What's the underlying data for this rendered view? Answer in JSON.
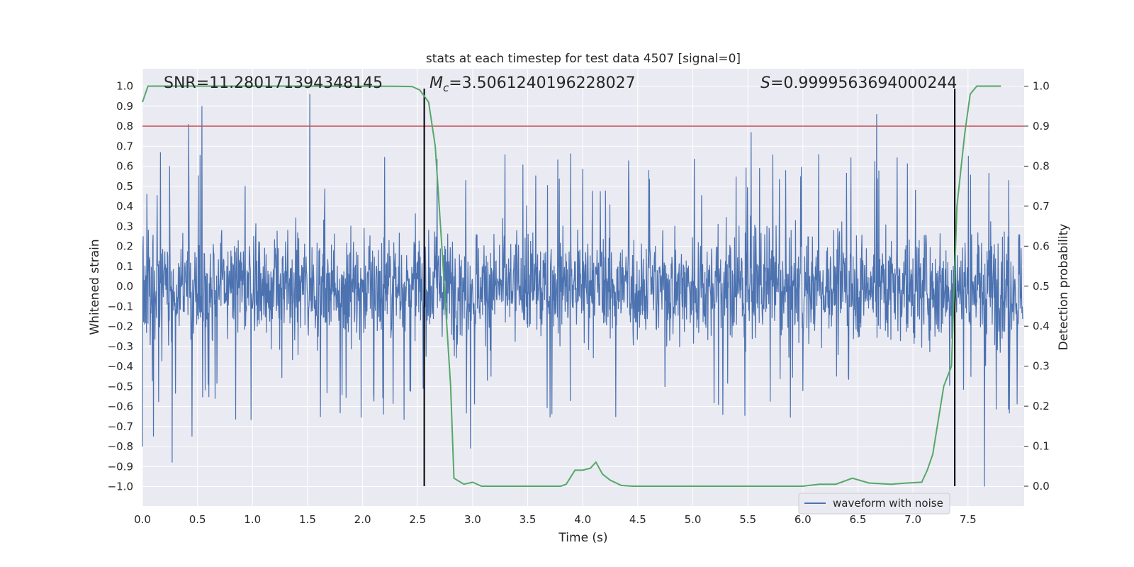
{
  "chart_data": {
    "type": "line",
    "title": "stats at each timestep for test data 4507 [signal=0]",
    "xlabel": "Time (s)",
    "ylabel": "Whitened strain",
    "ylabel_right": "Detection probability",
    "xlim": [
      0.0,
      8.0
    ],
    "ylim": [
      -1.1,
      1.1
    ],
    "ylim_right": [
      -0.05,
      1.05
    ],
    "x_ticks": [
      "0.0",
      "0.5",
      "1.0",
      "1.5",
      "2.0",
      "2.5",
      "3.0",
      "3.5",
      "4.0",
      "4.5",
      "5.0",
      "5.5",
      "6.0",
      "6.5",
      "7.0",
      "7.5"
    ],
    "y_ticks": [
      "1.0",
      "0.9",
      "0.8",
      "0.7",
      "0.6",
      "0.5",
      "0.4",
      "0.3",
      "0.2",
      "0.1",
      "0.0",
      "−0.1",
      "−0.2",
      "−0.3",
      "−0.4",
      "−0.5",
      "−0.6",
      "−0.7",
      "−0.8",
      "−0.9",
      "−1.0"
    ],
    "y_right_ticks": [
      "1.0",
      "0.9",
      "0.8",
      "0.7",
      "0.6",
      "0.5",
      "0.4",
      "0.3",
      "0.2",
      "0.1",
      "0.0"
    ],
    "annotations": {
      "snr_text": "SNR=11.280171394348145",
      "mc_symbol": "M",
      "mc_sub": "c",
      "mc_value": "=3.5061240196228027",
      "s_symbol": "S",
      "s_value": "=0.9999563694000244"
    },
    "vertical_lines_x": [
      2.56,
      7.38
    ],
    "threshold_right": 0.9,
    "series": [
      {
        "name": "waveform with noise",
        "axis": "left",
        "envelope": "noise with typical amplitude ±0.4 and spikes up to ±1.0",
        "spikes": [
          {
            "x": 0.42,
            "y": 0.81
          },
          {
            "x": 0.54,
            "y": 0.9
          },
          {
            "x": 1.52,
            "y": 0.96
          },
          {
            "x": 5.53,
            "y": 0.77
          },
          {
            "x": 6.67,
            "y": 0.86
          },
          {
            "x": 0.27,
            "y": -0.88
          },
          {
            "x": 2.98,
            "y": -0.81
          },
          {
            "x": 7.65,
            "y": -1.0
          },
          {
            "x": 0.45,
            "y": -0.75
          },
          {
            "x": 0.1,
            "y": -0.75
          },
          {
            "x": 0.0,
            "y": -0.8
          }
        ]
      },
      {
        "name": "detection probability",
        "axis": "right",
        "x": [
          0.0,
          0.05,
          0.5,
          1.0,
          1.5,
          2.0,
          2.3,
          2.45,
          2.52,
          2.6,
          2.66,
          2.72,
          2.8,
          2.83,
          2.92,
          3.0,
          3.08,
          3.15,
          3.5,
          3.8,
          3.85,
          3.93,
          4.0,
          4.07,
          4.12,
          4.18,
          4.25,
          4.35,
          4.45,
          5.0,
          5.5,
          6.0,
          6.15,
          6.3,
          6.45,
          6.6,
          6.8,
          6.95,
          7.08,
          7.13,
          7.18,
          7.28,
          7.35,
          7.4,
          7.47,
          7.52,
          7.58,
          7.65,
          7.8
        ],
        "y": [
          0.96,
          1.0,
          1.0,
          1.0,
          1.0,
          0.9998,
          0.9996,
          0.999,
          0.99,
          0.96,
          0.85,
          0.6,
          0.25,
          0.02,
          0.005,
          0.01,
          0.0,
          0.0,
          0.0,
          0.0,
          0.005,
          0.04,
          0.04,
          0.045,
          0.06,
          0.03,
          0.015,
          0.002,
          0.0,
          0.0,
          0.0,
          0.0,
          0.005,
          0.005,
          0.02,
          0.008,
          0.005,
          0.008,
          0.01,
          0.04,
          0.08,
          0.25,
          0.3,
          0.7,
          0.88,
          0.98,
          1.0,
          1.0,
          1.0
        ]
      }
    ],
    "legend": {
      "label": "waveform with noise",
      "placement": "lower-right"
    }
  },
  "colors": {
    "plot_bg": "#eaeaf2",
    "grid": "#ffffff",
    "waveform": "#4c72b0",
    "probability": "#55a868",
    "threshold": "#c44e52",
    "vline": "#000000"
  }
}
